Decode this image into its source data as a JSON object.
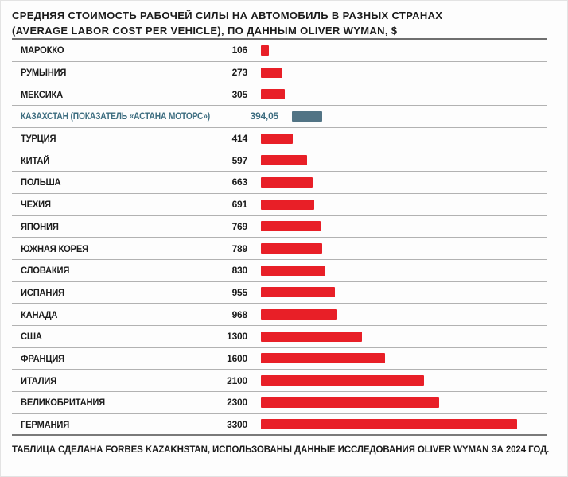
{
  "title": {
    "line1": "СРЕДНЯЯ СТОИМОСТЬ РАБОЧЕЙ СИЛЫ НА АВТОМОБИЛЬ В РАЗНЫХ СТРАНАХ",
    "line2": "(AVERAGE LABOR COST PER VEHICLE), ПО ДАННЫМ OLIVER WYMAN, $"
  },
  "footer": "ТАБЛИЦА СДЕЛАНА FORBES KAZAKHSTAN, ИСПОЛЬЗОВАНЫ ДАННЫЕ ИССЛЕДОВАНИЯ OLIVER WYMAN ЗА 2024 ГОД.",
  "colors": {
    "bar_default": "#e81f27",
    "bar_highlight": "#527485",
    "highlight_text": "#3d6d80"
  },
  "chart_data": {
    "type": "bar",
    "orientation": "horizontal",
    "title": "СРЕДНЯЯ СТОИМОСТЬ РАБОЧЕЙ СИЛЫ НА АВТОМОБИЛЬ В РАЗНЫХ СТРАНАХ (AVERAGE LABOR COST PER VEHICLE), ПО ДАННЫМ OLIVER WYMAN, $",
    "unit": "$",
    "xlim": [
      0,
      3300
    ],
    "grid": false,
    "legend": false,
    "rows": [
      {
        "label": "МАРОККО",
        "value": 106,
        "display": "106",
        "highlight": false
      },
      {
        "label": "РУМЫНИЯ",
        "value": 273,
        "display": "273",
        "highlight": false
      },
      {
        "label": "МЕКСИКА",
        "value": 305,
        "display": "305",
        "highlight": false
      },
      {
        "label": "КАЗАХСТАН (ПОКАЗАТЕЛЬ «АСТАНА МОТОРС»)",
        "value": 394.05,
        "display": "394,05",
        "highlight": true
      },
      {
        "label": "ТУРЦИЯ",
        "value": 414,
        "display": "414",
        "highlight": false
      },
      {
        "label": "КИТАЙ",
        "value": 597,
        "display": "597",
        "highlight": false
      },
      {
        "label": "ПОЛЬША",
        "value": 663,
        "display": "663",
        "highlight": false
      },
      {
        "label": "ЧЕХИЯ",
        "value": 691,
        "display": "691",
        "highlight": false
      },
      {
        "label": "ЯПОНИЯ",
        "value": 769,
        "display": "769",
        "highlight": false
      },
      {
        "label": "ЮЖНАЯ КОРЕЯ",
        "value": 789,
        "display": "789",
        "highlight": false
      },
      {
        "label": "СЛОВАКИЯ",
        "value": 830,
        "display": "830",
        "highlight": false
      },
      {
        "label": "ИСПАНИЯ",
        "value": 955,
        "display": "955",
        "highlight": false
      },
      {
        "label": "КАНАДА",
        "value": 968,
        "display": "968",
        "highlight": false
      },
      {
        "label": "США",
        "value": 1300,
        "display": "1300",
        "highlight": false
      },
      {
        "label": "ФРАНЦИЯ",
        "value": 1600,
        "display": "1600",
        "highlight": false
      },
      {
        "label": "ИТАЛИЯ",
        "value": 2100,
        "display": "2100",
        "highlight": false
      },
      {
        "label": "ВЕЛИКОБРИТАНИЯ",
        "value": 2300,
        "display": "2300",
        "highlight": false
      },
      {
        "label": "ГЕРМАНИЯ",
        "value": 3300,
        "display": "3300",
        "highlight": false
      }
    ]
  }
}
